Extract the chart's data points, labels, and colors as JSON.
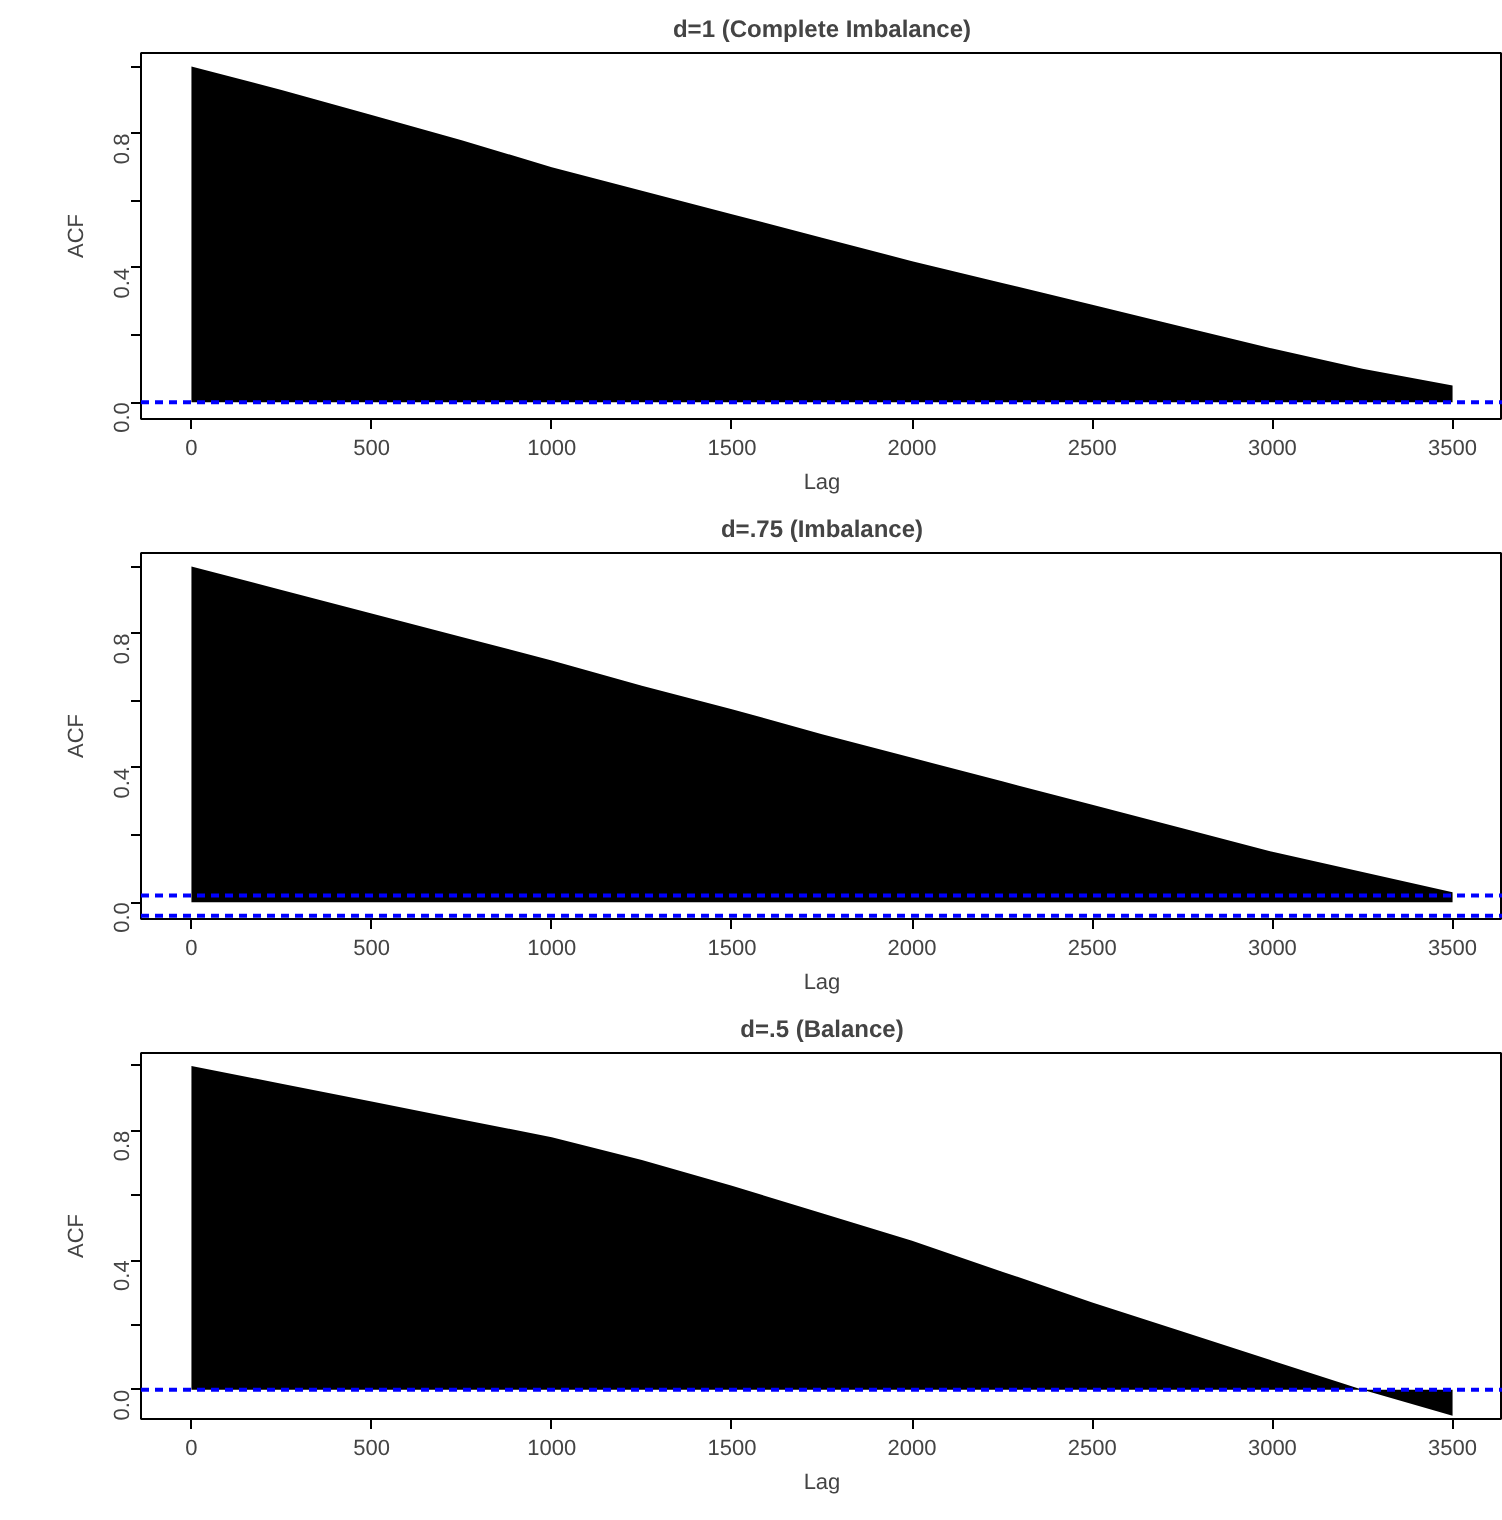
{
  "chart_data": [
    {
      "type": "area",
      "title": "d=1 (Complete Imbalance)",
      "xlabel": "Lag",
      "ylabel": "ACF",
      "x": [
        0,
        250,
        500,
        750,
        1000,
        1250,
        1500,
        1750,
        2000,
        2250,
        2500,
        2750,
        3000,
        3250,
        3500
      ],
      "series": [
        {
          "color": "#000000",
          "values": [
            1.0,
            0.93,
            0.855,
            0.78,
            0.7,
            0.63,
            0.56,
            0.49,
            0.42,
            0.355,
            0.29,
            0.225,
            0.16,
            0.1,
            0.05
          ]
        }
      ],
      "xlim": [
        -140,
        3640
      ],
      "ylim": [
        -0.05,
        1.04
      ],
      "xticks": [
        0,
        500,
        1000,
        1500,
        2000,
        2500,
        3000,
        3500
      ],
      "yticks": [
        {
          "value": 0,
          "label": "0.0"
        },
        {
          "value": 0.2,
          "label": null
        },
        {
          "value": 0.4,
          "label": "0.4"
        },
        {
          "value": 0.6,
          "label": null
        },
        {
          "value": 0.8,
          "label": "0.8"
        },
        {
          "value": 1.0,
          "label": null
        }
      ],
      "ref_lines": [
        {
          "axis": "y",
          "value": 0.0,
          "color": "#0000ff",
          "line_style": "dashed"
        }
      ],
      "grid": false
    },
    {
      "type": "area",
      "title": "d=.75 (Imbalance)",
      "xlabel": "Lag",
      "ylabel": "ACF",
      "x": [
        0,
        250,
        500,
        750,
        1000,
        1250,
        1500,
        1750,
        2000,
        2250,
        2500,
        2750,
        3000,
        3250,
        3500
      ],
      "series": [
        {
          "color": "#000000",
          "values": [
            1.0,
            0.93,
            0.86,
            0.79,
            0.72,
            0.645,
            0.575,
            0.5,
            0.43,
            0.36,
            0.29,
            0.22,
            0.15,
            0.09,
            0.03
          ]
        }
      ],
      "xlim": [
        -140,
        3640
      ],
      "ylim": [
        -0.05,
        1.04
      ],
      "xticks": [
        0,
        500,
        1000,
        1500,
        2000,
        2500,
        3000,
        3500
      ],
      "yticks": [
        {
          "value": 0,
          "label": "0.0"
        },
        {
          "value": 0.2,
          "label": null
        },
        {
          "value": 0.4,
          "label": "0.4"
        },
        {
          "value": 0.6,
          "label": null
        },
        {
          "value": 0.8,
          "label": "0.8"
        },
        {
          "value": 1.0,
          "label": null
        }
      ],
      "ref_lines": [
        {
          "axis": "y",
          "value": 0.02,
          "color": "#0000ff",
          "line_style": "dashed"
        },
        {
          "axis": "y",
          "value": -0.04,
          "color": "#0000ff",
          "line_style": "dashed"
        }
      ],
      "grid": false
    },
    {
      "type": "area",
      "title": "d=.5 (Balance)",
      "xlabel": "Lag",
      "ylabel": "ACF",
      "x": [
        0,
        250,
        500,
        750,
        1000,
        1250,
        1500,
        1750,
        2000,
        2250,
        2500,
        2750,
        3000,
        3250,
        3500
      ],
      "series": [
        {
          "color": "#000000",
          "values": [
            1.0,
            0.945,
            0.89,
            0.835,
            0.78,
            0.71,
            0.63,
            0.545,
            0.46,
            0.365,
            0.27,
            0.18,
            0.09,
            0.0,
            -0.08
          ]
        }
      ],
      "xlim": [
        -140,
        3640
      ],
      "ylim": [
        -0.09,
        1.04
      ],
      "xticks": [
        0,
        500,
        1000,
        1500,
        2000,
        2500,
        3000,
        3500
      ],
      "yticks": [
        {
          "value": 0,
          "label": "0.0"
        },
        {
          "value": 0.2,
          "label": null
        },
        {
          "value": 0.4,
          "label": "0.4"
        },
        {
          "value": 0.6,
          "label": null
        },
        {
          "value": 0.8,
          "label": "0.8"
        },
        {
          "value": 1.0,
          "label": null
        }
      ],
      "ref_lines": [
        {
          "axis": "y",
          "value": 0.0,
          "color": "#0000ff",
          "line_style": "dashed"
        }
      ],
      "grid": false
    }
  ]
}
